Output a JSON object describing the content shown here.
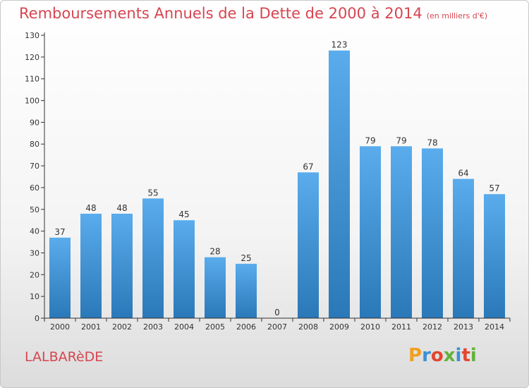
{
  "title": "Remboursements Annuels de la Dette de 2000 à 2014",
  "unit_label": "(en milliers d'€)",
  "commune": "LALBARèDE",
  "logo": "Proxiti",
  "colors": {
    "title": "#d64550",
    "bar_top": "#5aacec",
    "bar_bottom": "#2a78b8",
    "axis": "#333333",
    "grid": "#bbbbbb"
  },
  "chart_data": {
    "type": "bar",
    "title": "Remboursements Annuels de la Dette de 2000 à 2014",
    "xlabel": "",
    "ylabel": "",
    "categories": [
      "2000",
      "2001",
      "2002",
      "2003",
      "2004",
      "2005",
      "2006",
      "2007",
      "2008",
      "2009",
      "2010",
      "2011",
      "2012",
      "2013",
      "2014"
    ],
    "values": [
      37,
      48,
      48,
      55,
      45,
      28,
      25,
      0,
      67,
      123,
      79,
      79,
      78,
      64,
      57
    ],
    "ylim": [
      0,
      130
    ],
    "yticks": [
      0,
      10,
      20,
      30,
      40,
      50,
      60,
      70,
      80,
      90,
      100,
      110,
      120,
      130
    ],
    "grid": false,
    "data_labels": true
  }
}
